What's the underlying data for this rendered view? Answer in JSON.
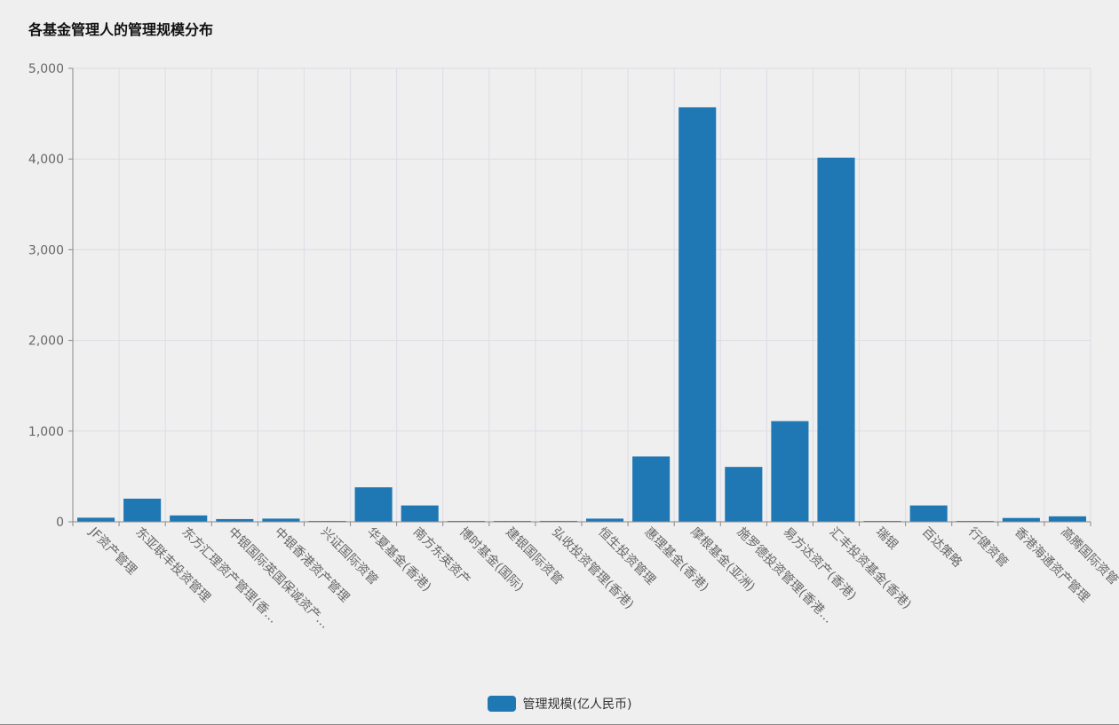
{
  "title": "各基金管理人的管理规模分布",
  "colors": {
    "bar": "#1f77b4",
    "grid": "#dcdce6",
    "axis": "#888888",
    "tick_text": "#666666"
  },
  "legend": {
    "label": "管理规模(亿人民币)",
    "swatch_color": "#1f77b4"
  },
  "chart_data": {
    "type": "bar",
    "categories": [
      "JF资产管理",
      "东亚联丰投资管理",
      "东方汇理资产管理(香…",
      "中银国际英国保诚资产…",
      "中银香港资产管理",
      "兴证国际资管",
      "华夏基金(香港)",
      "南方东英资产",
      "博时基金(国际)",
      "建银国际资管",
      "弘收投资管理(香港)",
      "恒生投资管理",
      "惠理基金(香港)",
      "摩根基金(亚洲)",
      "施罗德投资管理(香港…",
      "易方达资产(香港)",
      "汇丰投资基金(香港)",
      "瑞银",
      "百达策略",
      "行健资管",
      "香港海通资产管理",
      "高腾国际资管"
    ],
    "series": [
      {
        "name": "管理规模(亿人民币)",
        "values": [
          45,
          255,
          70,
          30,
          35,
          1,
          380,
          180,
          5,
          5,
          10,
          35,
          720,
          4570,
          605,
          1110,
          4015,
          5,
          180,
          8,
          42,
          60
        ]
      }
    ],
    "y_ticks": [
      "0",
      "1,000",
      "2,000",
      "3,000",
      "4,000",
      "5,000"
    ],
    "y_tick_values": [
      0,
      1000,
      2000,
      3000,
      4000,
      5000
    ],
    "ylim": [
      0,
      5000
    ],
    "grid": true,
    "legend_position": "bottom-center"
  }
}
